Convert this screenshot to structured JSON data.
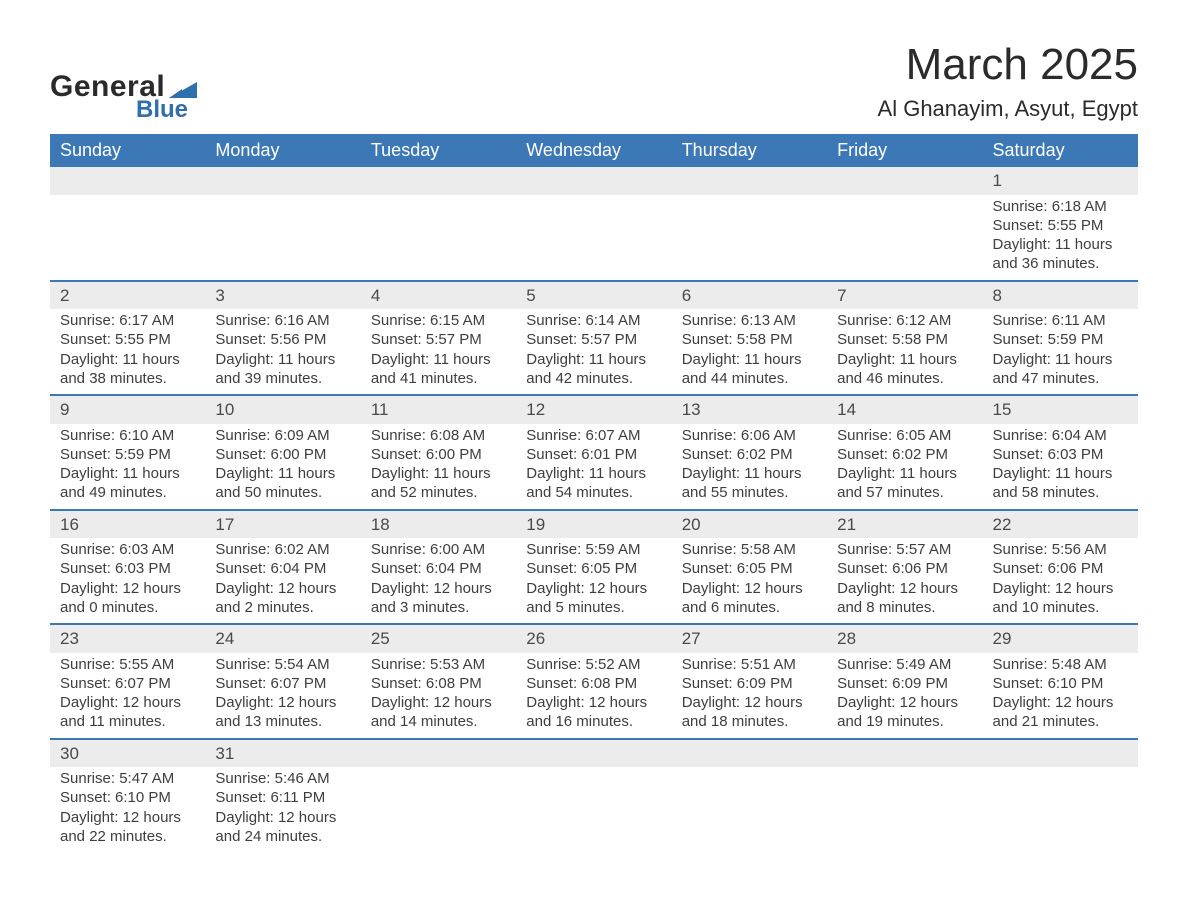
{
  "branding": {
    "logo_text_1": "General",
    "logo_text_2": "Blue",
    "logo_dark_color": "#2a2a2a",
    "logo_blue_color": "#2f6fab"
  },
  "title": "March 2025",
  "location": "Al Ghanayim, Asyut, Egypt",
  "colors": {
    "header_bg": "#3b78b5",
    "header_text": "#ffffff",
    "row_border": "#3b78b5",
    "daynum_bg": "#ececec",
    "body_text": "#3a3a3a",
    "page_bg": "#ffffff"
  },
  "day_headers": [
    "Sunday",
    "Monday",
    "Tuesday",
    "Wednesday",
    "Thursday",
    "Friday",
    "Saturday"
  ],
  "labels": {
    "sunrise": "Sunrise:",
    "sunset": "Sunset:",
    "daylight": "Daylight:"
  },
  "weeks": [
    [
      null,
      null,
      null,
      null,
      null,
      null,
      {
        "n": "1",
        "sunrise": "6:18 AM",
        "sunset": "5:55 PM",
        "daylight": "11 hours and 36 minutes."
      }
    ],
    [
      {
        "n": "2",
        "sunrise": "6:17 AM",
        "sunset": "5:55 PM",
        "daylight": "11 hours and 38 minutes."
      },
      {
        "n": "3",
        "sunrise": "6:16 AM",
        "sunset": "5:56 PM",
        "daylight": "11 hours and 39 minutes."
      },
      {
        "n": "4",
        "sunrise": "6:15 AM",
        "sunset": "5:57 PM",
        "daylight": "11 hours and 41 minutes."
      },
      {
        "n": "5",
        "sunrise": "6:14 AM",
        "sunset": "5:57 PM",
        "daylight": "11 hours and 42 minutes."
      },
      {
        "n": "6",
        "sunrise": "6:13 AM",
        "sunset": "5:58 PM",
        "daylight": "11 hours and 44 minutes."
      },
      {
        "n": "7",
        "sunrise": "6:12 AM",
        "sunset": "5:58 PM",
        "daylight": "11 hours and 46 minutes."
      },
      {
        "n": "8",
        "sunrise": "6:11 AM",
        "sunset": "5:59 PM",
        "daylight": "11 hours and 47 minutes."
      }
    ],
    [
      {
        "n": "9",
        "sunrise": "6:10 AM",
        "sunset": "5:59 PM",
        "daylight": "11 hours and 49 minutes."
      },
      {
        "n": "10",
        "sunrise": "6:09 AM",
        "sunset": "6:00 PM",
        "daylight": "11 hours and 50 minutes."
      },
      {
        "n": "11",
        "sunrise": "6:08 AM",
        "sunset": "6:00 PM",
        "daylight": "11 hours and 52 minutes."
      },
      {
        "n": "12",
        "sunrise": "6:07 AM",
        "sunset": "6:01 PM",
        "daylight": "11 hours and 54 minutes."
      },
      {
        "n": "13",
        "sunrise": "6:06 AM",
        "sunset": "6:02 PM",
        "daylight": "11 hours and 55 minutes."
      },
      {
        "n": "14",
        "sunrise": "6:05 AM",
        "sunset": "6:02 PM",
        "daylight": "11 hours and 57 minutes."
      },
      {
        "n": "15",
        "sunrise": "6:04 AM",
        "sunset": "6:03 PM",
        "daylight": "11 hours and 58 minutes."
      }
    ],
    [
      {
        "n": "16",
        "sunrise": "6:03 AM",
        "sunset": "6:03 PM",
        "daylight": "12 hours and 0 minutes."
      },
      {
        "n": "17",
        "sunrise": "6:02 AM",
        "sunset": "6:04 PM",
        "daylight": "12 hours and 2 minutes."
      },
      {
        "n": "18",
        "sunrise": "6:00 AM",
        "sunset": "6:04 PM",
        "daylight": "12 hours and 3 minutes."
      },
      {
        "n": "19",
        "sunrise": "5:59 AM",
        "sunset": "6:05 PM",
        "daylight": "12 hours and 5 minutes."
      },
      {
        "n": "20",
        "sunrise": "5:58 AM",
        "sunset": "6:05 PM",
        "daylight": "12 hours and 6 minutes."
      },
      {
        "n": "21",
        "sunrise": "5:57 AM",
        "sunset": "6:06 PM",
        "daylight": "12 hours and 8 minutes."
      },
      {
        "n": "22",
        "sunrise": "5:56 AM",
        "sunset": "6:06 PM",
        "daylight": "12 hours and 10 minutes."
      }
    ],
    [
      {
        "n": "23",
        "sunrise": "5:55 AM",
        "sunset": "6:07 PM",
        "daylight": "12 hours and 11 minutes."
      },
      {
        "n": "24",
        "sunrise": "5:54 AM",
        "sunset": "6:07 PM",
        "daylight": "12 hours and 13 minutes."
      },
      {
        "n": "25",
        "sunrise": "5:53 AM",
        "sunset": "6:08 PM",
        "daylight": "12 hours and 14 minutes."
      },
      {
        "n": "26",
        "sunrise": "5:52 AM",
        "sunset": "6:08 PM",
        "daylight": "12 hours and 16 minutes."
      },
      {
        "n": "27",
        "sunrise": "5:51 AM",
        "sunset": "6:09 PM",
        "daylight": "12 hours and 18 minutes."
      },
      {
        "n": "28",
        "sunrise": "5:49 AM",
        "sunset": "6:09 PM",
        "daylight": "12 hours and 19 minutes."
      },
      {
        "n": "29",
        "sunrise": "5:48 AM",
        "sunset": "6:10 PM",
        "daylight": "12 hours and 21 minutes."
      }
    ],
    [
      {
        "n": "30",
        "sunrise": "5:47 AM",
        "sunset": "6:10 PM",
        "daylight": "12 hours and 22 minutes."
      },
      {
        "n": "31",
        "sunrise": "5:46 AM",
        "sunset": "6:11 PM",
        "daylight": "12 hours and 24 minutes."
      },
      null,
      null,
      null,
      null,
      null
    ]
  ]
}
